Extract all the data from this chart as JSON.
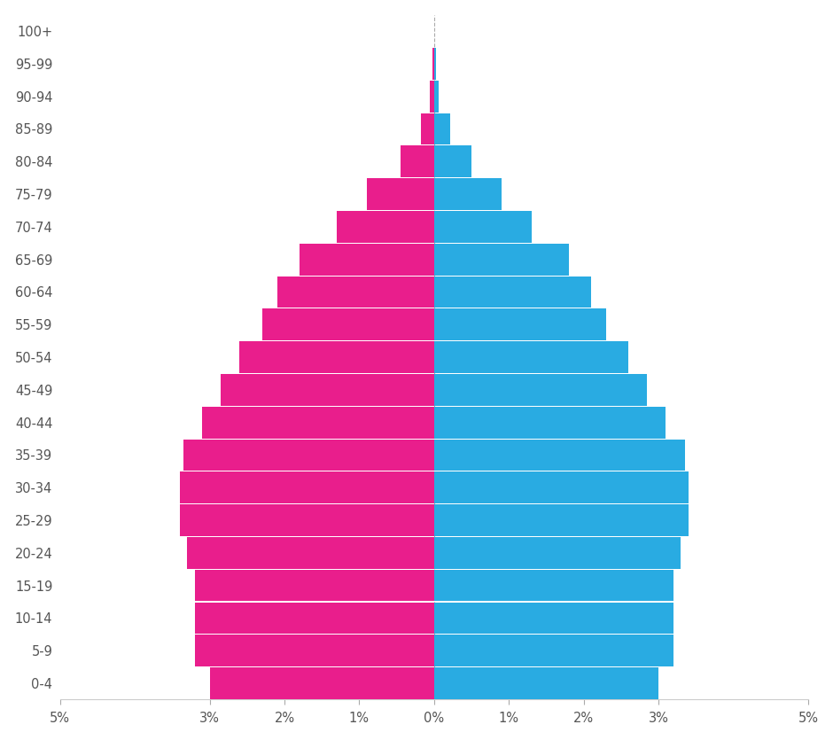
{
  "age_groups": [
    "0-4",
    "5-9",
    "10-14",
    "15-19",
    "20-24",
    "25-29",
    "30-34",
    "35-39",
    "40-44",
    "45-49",
    "50-54",
    "55-59",
    "60-64",
    "65-69",
    "70-74",
    "75-79",
    "80-84",
    "85-89",
    "90-94",
    "95-99",
    "100+"
  ],
  "female": [
    3.0,
    3.2,
    3.2,
    3.2,
    3.3,
    3.4,
    3.4,
    3.35,
    3.1,
    2.85,
    2.6,
    2.3,
    2.1,
    1.8,
    1.3,
    0.9,
    0.45,
    0.18,
    0.06,
    0.02,
    0.0
  ],
  "male": [
    3.0,
    3.2,
    3.2,
    3.2,
    3.3,
    3.4,
    3.4,
    3.35,
    3.1,
    2.85,
    2.6,
    2.3,
    2.1,
    1.8,
    1.3,
    0.9,
    0.5,
    0.22,
    0.06,
    0.03,
    0.0
  ],
  "female_color": "#E91E8C",
  "male_color": "#29ABE2",
  "background_color": "#FFFFFF",
  "bar_height": 0.97,
  "xlim": 5.0,
  "xtick_positions": [
    -5,
    -3,
    -2,
    -1,
    0,
    1,
    2,
    3,
    5
  ],
  "xtick_labels": [
    "5%",
    "3%",
    "2%",
    "1%",
    "0%",
    "1%",
    "2%",
    "3%",
    "5%"
  ],
  "ytick_color": "#555555",
  "xtick_color": "#555555",
  "spine_color": "#CCCCCC",
  "grid_color": "#E0E0E0",
  "center_line_color": "#AAAAAA",
  "figsize": [
    9.4,
    8.35
  ],
  "dpi": 100
}
